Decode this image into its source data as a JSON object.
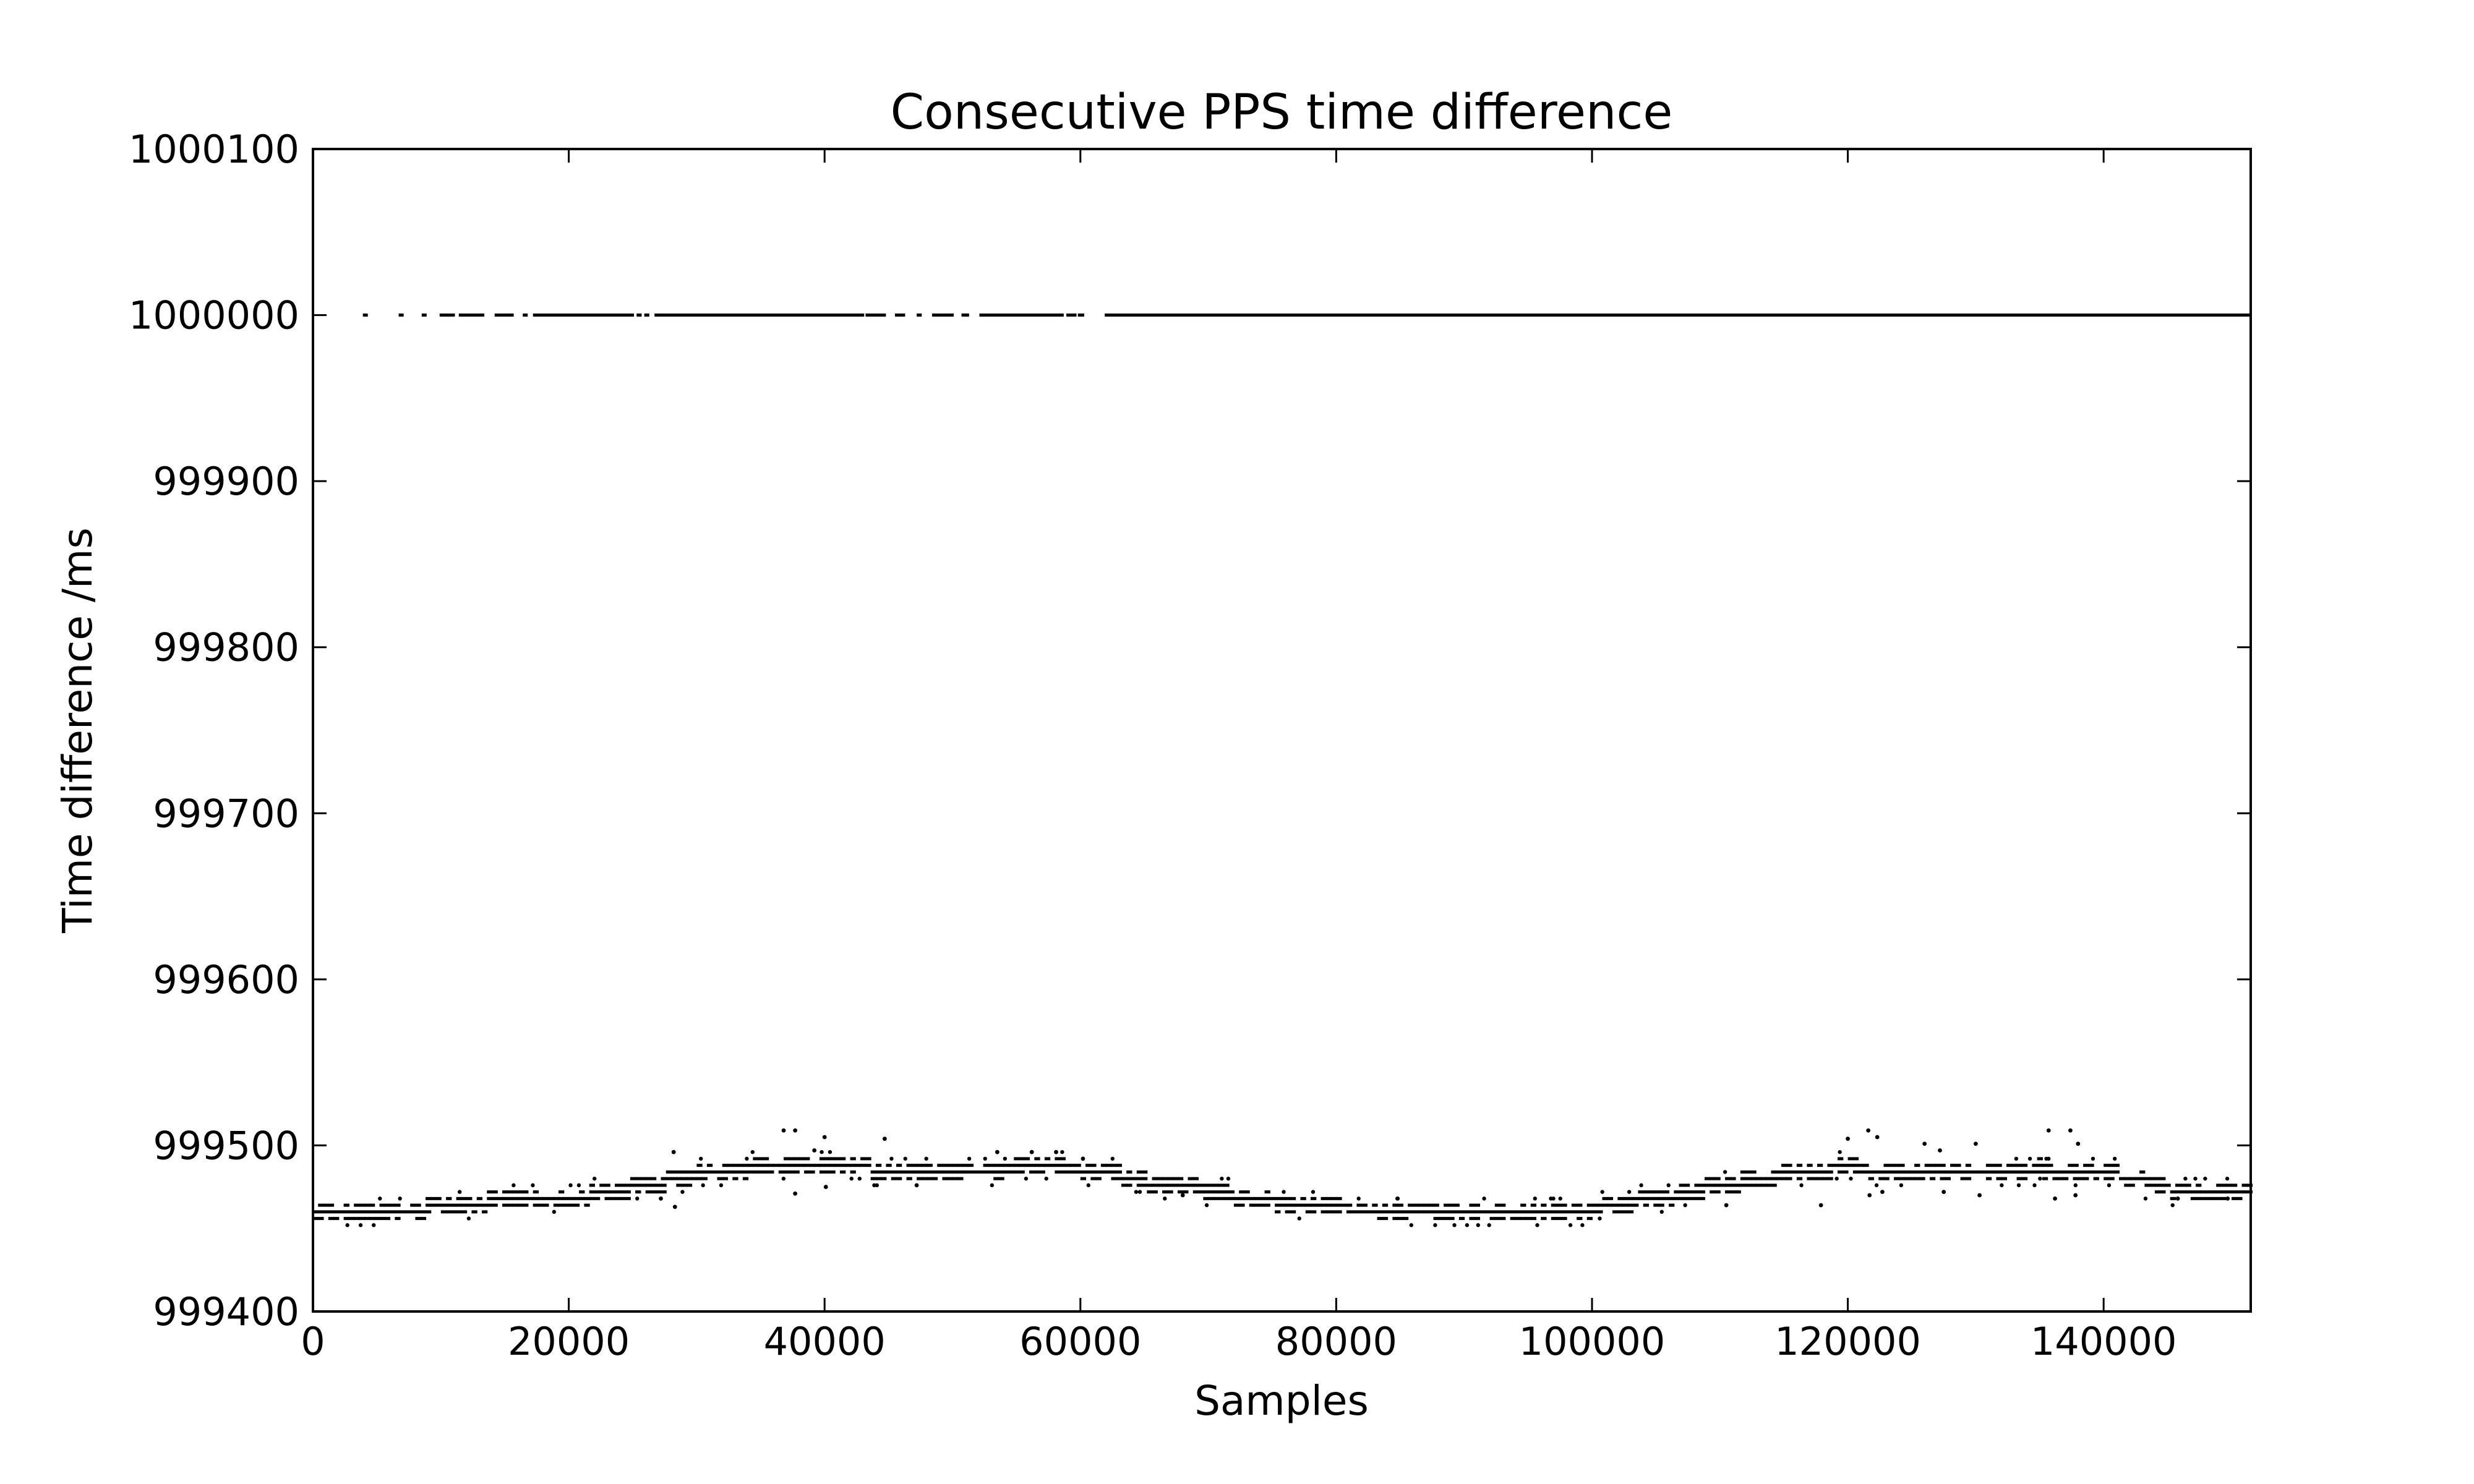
{
  "chart_data": {
    "type": "scatter",
    "title": "Consecutive PPS time difference",
    "xlabel": "Samples",
    "ylabel": "Time difference /ms",
    "xlim": [
      0,
      151500
    ],
    "ylim": [
      999400,
      1000100
    ],
    "xticks": [
      0,
      20000,
      40000,
      60000,
      80000,
      100000,
      120000,
      140000
    ],
    "xtick_labels": [
      "0",
      "20000",
      "40000",
      "60000",
      "80000",
      "100000",
      "120000",
      "140000"
    ],
    "yticks": [
      999400,
      999500,
      999600,
      999700,
      999800,
      999900,
      1000000,
      1000100
    ],
    "ytick_labels": [
      "999400",
      "999500",
      "999600",
      "999700",
      "999800",
      "999900",
      "1000000",
      "1000100"
    ],
    "grid": false,
    "marker": "point",
    "color": "#000000",
    "series": [
      {
        "upper_band_value": 1000000,
        "upper_band_segments": [
          [
            4000,
            4000
          ],
          [
            6800,
            6800
          ],
          [
            8600,
            8600
          ],
          [
            10000,
            11000
          ],
          [
            11500,
            13300
          ],
          [
            14300,
            15600
          ],
          [
            16500,
            16600
          ],
          [
            17300,
            25000
          ],
          [
            25400,
            25600
          ],
          [
            26000,
            26200
          ],
          [
            26800,
            43000
          ],
          [
            43300,
            44700
          ],
          [
            45600,
            46200
          ],
          [
            47300,
            47500
          ],
          [
            48500,
            50000
          ],
          [
            50800,
            51200
          ],
          [
            52200,
            58600
          ],
          [
            59000,
            59600
          ],
          [
            59900,
            60200
          ],
          [
            62000,
            151500
          ]
        ],
        "lower_band_trend": {
          "x": [
            0,
            5000,
            10000,
            15000,
            20000,
            25000,
            30000,
            35000,
            38000,
            42000,
            47000,
            52000,
            57000,
            62000,
            65000,
            70000,
            75000,
            80000,
            85000,
            90000,
            95000,
            100000,
            105000,
            110000,
            115000,
            120000,
            125000,
            130000,
            135000,
            140000,
            145000,
            151500
          ],
          "y": [
            999458,
            999459,
            999463,
            999467,
            999468,
            999474,
            999482,
            999487,
            999489,
            999487,
            999484,
            999485,
            999487,
            999485,
            999478,
            999473,
            999466,
            999463,
            999458,
            999458,
            999460,
            999462,
            999468,
            999476,
            999482,
            999487,
            999484,
            999485,
            999486,
            999484,
            999474,
            999473
          ]
        },
        "lower_band_spread": 6,
        "lower_band_outliers": [
          [
            28200,
            999496
          ],
          [
            36800,
            999509
          ],
          [
            37700,
            999509
          ],
          [
            39200,
            999497
          ],
          [
            40000,
            999505
          ],
          [
            44700,
            999504
          ],
          [
            53500,
            999496
          ],
          [
            56200,
            999496
          ],
          [
            58100,
            999496
          ],
          [
            60200,
            999492
          ],
          [
            120000,
            999504
          ],
          [
            121600,
            999509
          ],
          [
            122300,
            999505
          ],
          [
            126000,
            999501
          ],
          [
            127200,
            999497
          ],
          [
            130000,
            999501
          ],
          [
            135700,
            999509
          ],
          [
            137400,
            999509
          ],
          [
            138000,
            999501
          ],
          [
            27200,
            999468
          ],
          [
            28300,
            999463
          ],
          [
            37700,
            999471
          ],
          [
            40100,
            999475
          ],
          [
            47200,
            999476
          ],
          [
            68000,
            999470
          ],
          [
            110500,
            999464
          ],
          [
            117900,
            999464
          ],
          [
            121700,
            999470
          ],
          [
            122700,
            999472
          ],
          [
            127500,
            999472
          ],
          [
            130300,
            999470
          ],
          [
            136200,
            999468
          ],
          [
            137800,
            999470
          ],
          [
            145800,
            999468
          ],
          [
            149700,
            999468
          ]
        ]
      }
    ]
  }
}
